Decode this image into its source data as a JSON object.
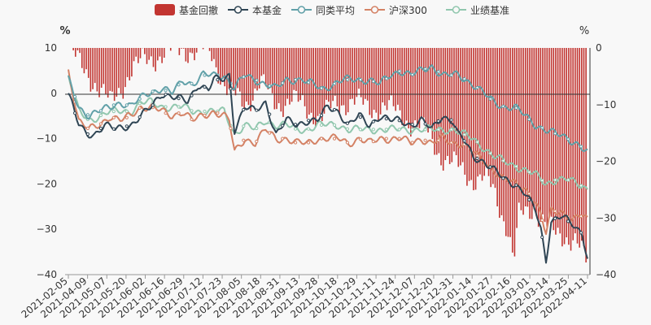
{
  "chart_data": {
    "type": "bar+line",
    "left_axis_unit": "%",
    "right_axis_unit": "%",
    "left_ylim": [
      -40,
      10
    ],
    "right_ylim": [
      -40,
      0
    ],
    "left_ticks": [
      "10",
      "0",
      "−10",
      "−20",
      "−30",
      "−40"
    ],
    "right_ticks": [
      "0",
      "−10",
      "−20",
      "−30",
      "−40"
    ],
    "x_ticks": [
      "2021-02-05",
      "2021-04-09",
      "2021-05-07",
      "2021-05-20",
      "2021-06-02",
      "2021-06-16",
      "2021-06-29",
      "2021-07-12",
      "2021-07-23",
      "2021-08-05",
      "2021-08-18",
      "2021-08-31",
      "2021-09-13",
      "2021-09-28",
      "2021-10-18",
      "2021-10-29",
      "2021-11-11",
      "2021-11-24",
      "2021-12-07",
      "2021-12-20",
      "2021-12-31",
      "2022-01-14",
      "2022-01-27",
      "2022-02-16",
      "2022-03-01",
      "2022-03-14",
      "2022-03-25",
      "2022-04-11"
    ],
    "colors": {
      "drawdown": "#c23531",
      "fund": "#2f4554",
      "peer_avg": "#61a0a8",
      "csi300": "#d48265",
      "benchmark": "#91c7ae"
    },
    "drawdown_profile": [
      [
        0,
        0
      ],
      [
        0.02,
        -3
      ],
      [
        0.05,
        -6
      ],
      [
        0.08,
        -10
      ],
      [
        0.1,
        -7
      ],
      [
        0.12,
        -4
      ],
      [
        0.15,
        -2
      ],
      [
        0.19,
        -1
      ],
      [
        0.22,
        0
      ],
      [
        0.25,
        -1
      ],
      [
        0.27,
        0
      ],
      [
        0.29,
        -4
      ],
      [
        0.31,
        -8
      ],
      [
        0.34,
        -10
      ],
      [
        0.37,
        -6
      ],
      [
        0.4,
        -10
      ],
      [
        0.43,
        -9
      ],
      [
        0.46,
        -11
      ],
      [
        0.49,
        -12
      ],
      [
        0.52,
        -10
      ],
      [
        0.55,
        -9
      ],
      [
        0.58,
        -11
      ],
      [
        0.61,
        -10
      ],
      [
        0.64,
        -12
      ],
      [
        0.66,
        -13
      ],
      [
        0.68,
        -14
      ],
      [
        0.7,
        -16
      ],
      [
        0.72,
        -19
      ],
      [
        0.75,
        -21
      ],
      [
        0.78,
        -23
      ],
      [
        0.8,
        -23
      ],
      [
        0.82,
        -25
      ],
      [
        0.85,
        -32
      ],
      [
        0.86,
        -38
      ],
      [
        0.87,
        -30
      ],
      [
        0.9,
        -28
      ],
      [
        0.92,
        -31
      ],
      [
        0.94,
        -33
      ],
      [
        0.96,
        -33
      ],
      [
        0.98,
        -34
      ],
      [
        1.0,
        -38
      ]
    ],
    "series": [
      {
        "name": "本基金",
        "color_key": "fund",
        "values": [
          [
            0,
            0
          ],
          [
            0.02,
            -7
          ],
          [
            0.035,
            -9
          ],
          [
            0.05,
            -9
          ],
          [
            0.07,
            -7
          ],
          [
            0.09,
            -8
          ],
          [
            0.12,
            -7
          ],
          [
            0.14,
            -5
          ],
          [
            0.16,
            -3
          ],
          [
            0.18,
            0
          ],
          [
            0.21,
            -1
          ],
          [
            0.23,
            -2
          ],
          [
            0.25,
            2
          ],
          [
            0.27,
            1
          ],
          [
            0.28,
            3
          ],
          [
            0.3,
            3
          ],
          [
            0.31,
            4
          ],
          [
            0.32,
            -8
          ],
          [
            0.34,
            -3
          ],
          [
            0.36,
            -4
          ],
          [
            0.38,
            -2
          ],
          [
            0.4,
            -9
          ],
          [
            0.42,
            -6
          ],
          [
            0.44,
            -7
          ],
          [
            0.46,
            -6
          ],
          [
            0.48,
            -6
          ],
          [
            0.5,
            -3
          ],
          [
            0.52,
            -4
          ],
          [
            0.54,
            -7
          ],
          [
            0.56,
            -5
          ],
          [
            0.58,
            -7
          ],
          [
            0.6,
            -5
          ],
          [
            0.62,
            -6
          ],
          [
            0.64,
            -6
          ],
          [
            0.66,
            -7
          ],
          [
            0.68,
            -6
          ],
          [
            0.7,
            -8
          ],
          [
            0.72,
            -5
          ],
          [
            0.74,
            -6
          ],
          [
            0.75,
            -9
          ],
          [
            0.76,
            -10
          ],
          [
            0.78,
            -14
          ],
          [
            0.8,
            -15
          ],
          [
            0.82,
            -17
          ],
          [
            0.84,
            -19
          ],
          [
            0.86,
            -20
          ],
          [
            0.88,
            -22
          ],
          [
            0.9,
            -26
          ],
          [
            0.91,
            -30
          ],
          [
            0.92,
            -37
          ],
          [
            0.93,
            -28
          ],
          [
            0.95,
            -27
          ],
          [
            0.97,
            -29
          ],
          [
            0.99,
            -31
          ],
          [
            1.0,
            -36
          ]
        ]
      },
      {
        "name": "同类平均",
        "color_key": "peer_avg",
        "values": [
          [
            0,
            3
          ],
          [
            0.02,
            -3
          ],
          [
            0.04,
            -5
          ],
          [
            0.06,
            -4
          ],
          [
            0.08,
            -3
          ],
          [
            0.1,
            -2
          ],
          [
            0.12,
            -3
          ],
          [
            0.15,
            0
          ],
          [
            0.18,
            1
          ],
          [
            0.2,
            0
          ],
          [
            0.22,
            3
          ],
          [
            0.24,
            2
          ],
          [
            0.26,
            4
          ],
          [
            0.28,
            4
          ],
          [
            0.3,
            4
          ],
          [
            0.32,
            1
          ],
          [
            0.34,
            4
          ],
          [
            0.36,
            3
          ],
          [
            0.38,
            2
          ],
          [
            0.4,
            1
          ],
          [
            0.42,
            3
          ],
          [
            0.45,
            3
          ],
          [
            0.47,
            2
          ],
          [
            0.49,
            1
          ],
          [
            0.51,
            2
          ],
          [
            0.53,
            3
          ],
          [
            0.55,
            3
          ],
          [
            0.58,
            3
          ],
          [
            0.6,
            2
          ],
          [
            0.62,
            4
          ],
          [
            0.64,
            5
          ],
          [
            0.66,
            4
          ],
          [
            0.68,
            5
          ],
          [
            0.7,
            6
          ],
          [
            0.72,
            4
          ],
          [
            0.75,
            4
          ],
          [
            0.78,
            2
          ],
          [
            0.8,
            0
          ],
          [
            0.82,
            -2
          ],
          [
            0.84,
            -3
          ],
          [
            0.86,
            -3
          ],
          [
            0.88,
            -5
          ],
          [
            0.9,
            -7
          ],
          [
            0.92,
            -8
          ],
          [
            0.94,
            -9
          ],
          [
            0.96,
            -10
          ],
          [
            0.98,
            -11
          ],
          [
            1.0,
            -13
          ]
        ]
      },
      {
        "name": "沪深300",
        "color_key": "csi300",
        "values": [
          [
            0,
            5
          ],
          [
            0.02,
            -6
          ],
          [
            0.04,
            -8
          ],
          [
            0.06,
            -7
          ],
          [
            0.08,
            -5
          ],
          [
            0.1,
            -6
          ],
          [
            0.12,
            -5
          ],
          [
            0.14,
            -3
          ],
          [
            0.16,
            -3
          ],
          [
            0.18,
            -4
          ],
          [
            0.2,
            -5
          ],
          [
            0.22,
            -4
          ],
          [
            0.24,
            -6
          ],
          [
            0.26,
            -5
          ],
          [
            0.28,
            -4
          ],
          [
            0.3,
            -5
          ],
          [
            0.31,
            -6
          ],
          [
            0.32,
            -13
          ],
          [
            0.34,
            -10
          ],
          [
            0.36,
            -11
          ],
          [
            0.38,
            -8
          ],
          [
            0.4,
            -10
          ],
          [
            0.42,
            -10
          ],
          [
            0.44,
            -11
          ],
          [
            0.46,
            -11
          ],
          [
            0.48,
            -10
          ],
          [
            0.5,
            -10
          ],
          [
            0.52,
            -10
          ],
          [
            0.54,
            -11
          ],
          [
            0.56,
            -10
          ],
          [
            0.58,
            -11
          ],
          [
            0.6,
            -10
          ],
          [
            0.62,
            -10
          ],
          [
            0.64,
            -10
          ],
          [
            0.66,
            -11
          ],
          [
            0.68,
            -10
          ],
          [
            0.7,
            -11
          ],
          [
            0.72,
            -10
          ],
          [
            0.74,
            -11
          ],
          [
            0.76,
            -11
          ],
          [
            0.78,
            -13
          ],
          [
            0.8,
            -15
          ],
          [
            0.82,
            -17
          ],
          [
            0.84,
            -19
          ],
          [
            0.86,
            -20
          ],
          [
            0.88,
            -21
          ],
          [
            0.9,
            -24
          ],
          [
            0.91,
            -27
          ],
          [
            0.92,
            -31
          ],
          [
            0.93,
            -26
          ],
          [
            0.95,
            -26
          ],
          [
            0.97,
            -28
          ],
          [
            0.99,
            -27
          ],
          [
            1.0,
            -28
          ]
        ]
      },
      {
        "name": "业绩基准",
        "color_key": "benchmark",
        "values": [
          [
            0,
            4
          ],
          [
            0.02,
            -4
          ],
          [
            0.04,
            -6
          ],
          [
            0.06,
            -5
          ],
          [
            0.08,
            -4
          ],
          [
            0.1,
            -4
          ],
          [
            0.12,
            -4
          ],
          [
            0.14,
            -2
          ],
          [
            0.16,
            -2
          ],
          [
            0.18,
            -3
          ],
          [
            0.2,
            -3
          ],
          [
            0.22,
            -3
          ],
          [
            0.24,
            -4
          ],
          [
            0.26,
            -4
          ],
          [
            0.28,
            -4
          ],
          [
            0.3,
            -4
          ],
          [
            0.32,
            -9
          ],
          [
            0.34,
            -7
          ],
          [
            0.36,
            -8
          ],
          [
            0.38,
            -6
          ],
          [
            0.4,
            -7
          ],
          [
            0.42,
            -7
          ],
          [
            0.44,
            -8
          ],
          [
            0.46,
            -8
          ],
          [
            0.48,
            -7
          ],
          [
            0.5,
            -7
          ],
          [
            0.52,
            -7
          ],
          [
            0.54,
            -8
          ],
          [
            0.56,
            -8
          ],
          [
            0.58,
            -8
          ],
          [
            0.6,
            -8
          ],
          [
            0.62,
            -8
          ],
          [
            0.64,
            -8
          ],
          [
            0.66,
            -8
          ],
          [
            0.68,
            -8
          ],
          [
            0.7,
            -8
          ],
          [
            0.72,
            -8
          ],
          [
            0.74,
            -8
          ],
          [
            0.76,
            -9
          ],
          [
            0.78,
            -10
          ],
          [
            0.8,
            -12
          ],
          [
            0.82,
            -14
          ],
          [
            0.84,
            -15
          ],
          [
            0.86,
            -16
          ],
          [
            0.88,
            -17
          ],
          [
            0.9,
            -18
          ],
          [
            0.92,
            -20
          ],
          [
            0.94,
            -19
          ],
          [
            0.96,
            -19
          ],
          [
            0.98,
            -20
          ],
          [
            1.0,
            -21
          ]
        ]
      }
    ],
    "legend": [
      {
        "label": "基金回撤",
        "kind": "bar",
        "color_key": "drawdown"
      },
      {
        "label": "本基金",
        "kind": "line",
        "color_key": "fund"
      },
      {
        "label": "同类平均",
        "kind": "line",
        "color_key": "peer_avg"
      },
      {
        "label": "沪深300",
        "kind": "line",
        "color_key": "csi300"
      },
      {
        "label": "业绩基准",
        "kind": "line",
        "color_key": "benchmark"
      }
    ]
  }
}
